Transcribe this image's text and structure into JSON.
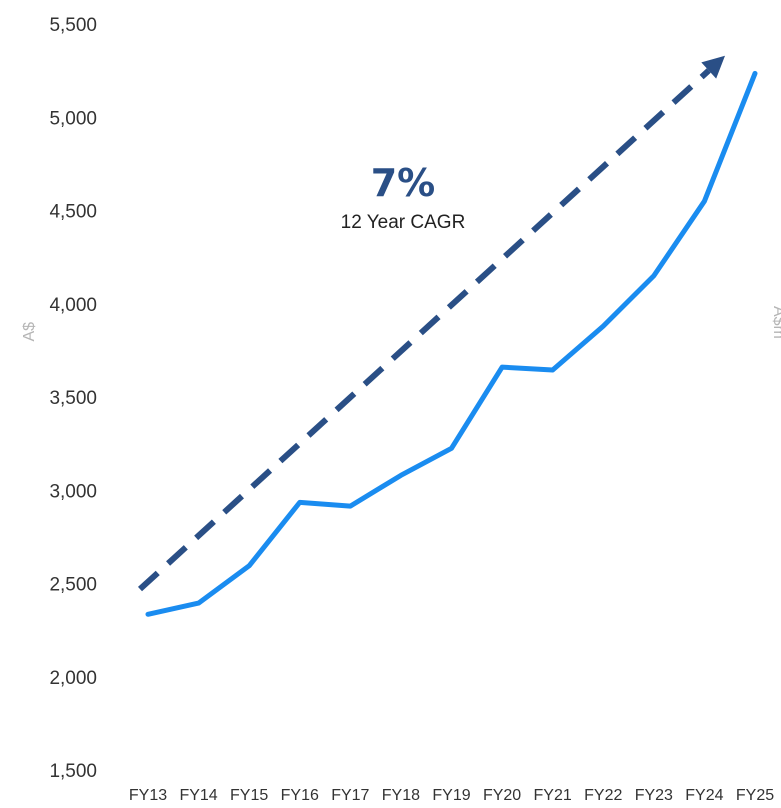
{
  "chart_data": {
    "type": "line",
    "categories": [
      "FY13",
      "FY14",
      "FY15",
      "FY16",
      "FY17",
      "FY18",
      "FY19",
      "FY20",
      "FY21",
      "FY22",
      "FY23",
      "FY24",
      "FY25"
    ],
    "series": [
      {
        "values": [
          2335,
          2395,
          2595,
          2935,
          2915,
          3080,
          3225,
          3660,
          3645,
          3880,
          4150,
          4550,
          5235
        ],
        "color": "#1a8cf0"
      }
    ],
    "ylabel": "A$",
    "right_axis_label": "A$m",
    "ylim": [
      1500,
      5500
    ],
    "yticks": [
      1500,
      2000,
      2500,
      3000,
      3500,
      4000,
      4500,
      5000,
      5500
    ],
    "ytick_labels": [
      "1,500",
      "2,000",
      "2,500",
      "3,000",
      "3,500",
      "4,000",
      "4,500",
      "5,000",
      "5,500"
    ],
    "grid": false,
    "trend_arrow": {
      "start": {
        "x": "FY13",
        "y": 2470
      },
      "end": {
        "x": "FY25",
        "y": 5330
      },
      "color": "#2a4f86",
      "style": "dashed"
    },
    "annotations": [
      {
        "value": "7%",
        "label": "12 Year CAGR",
        "color": "#2a4f86"
      }
    ]
  }
}
